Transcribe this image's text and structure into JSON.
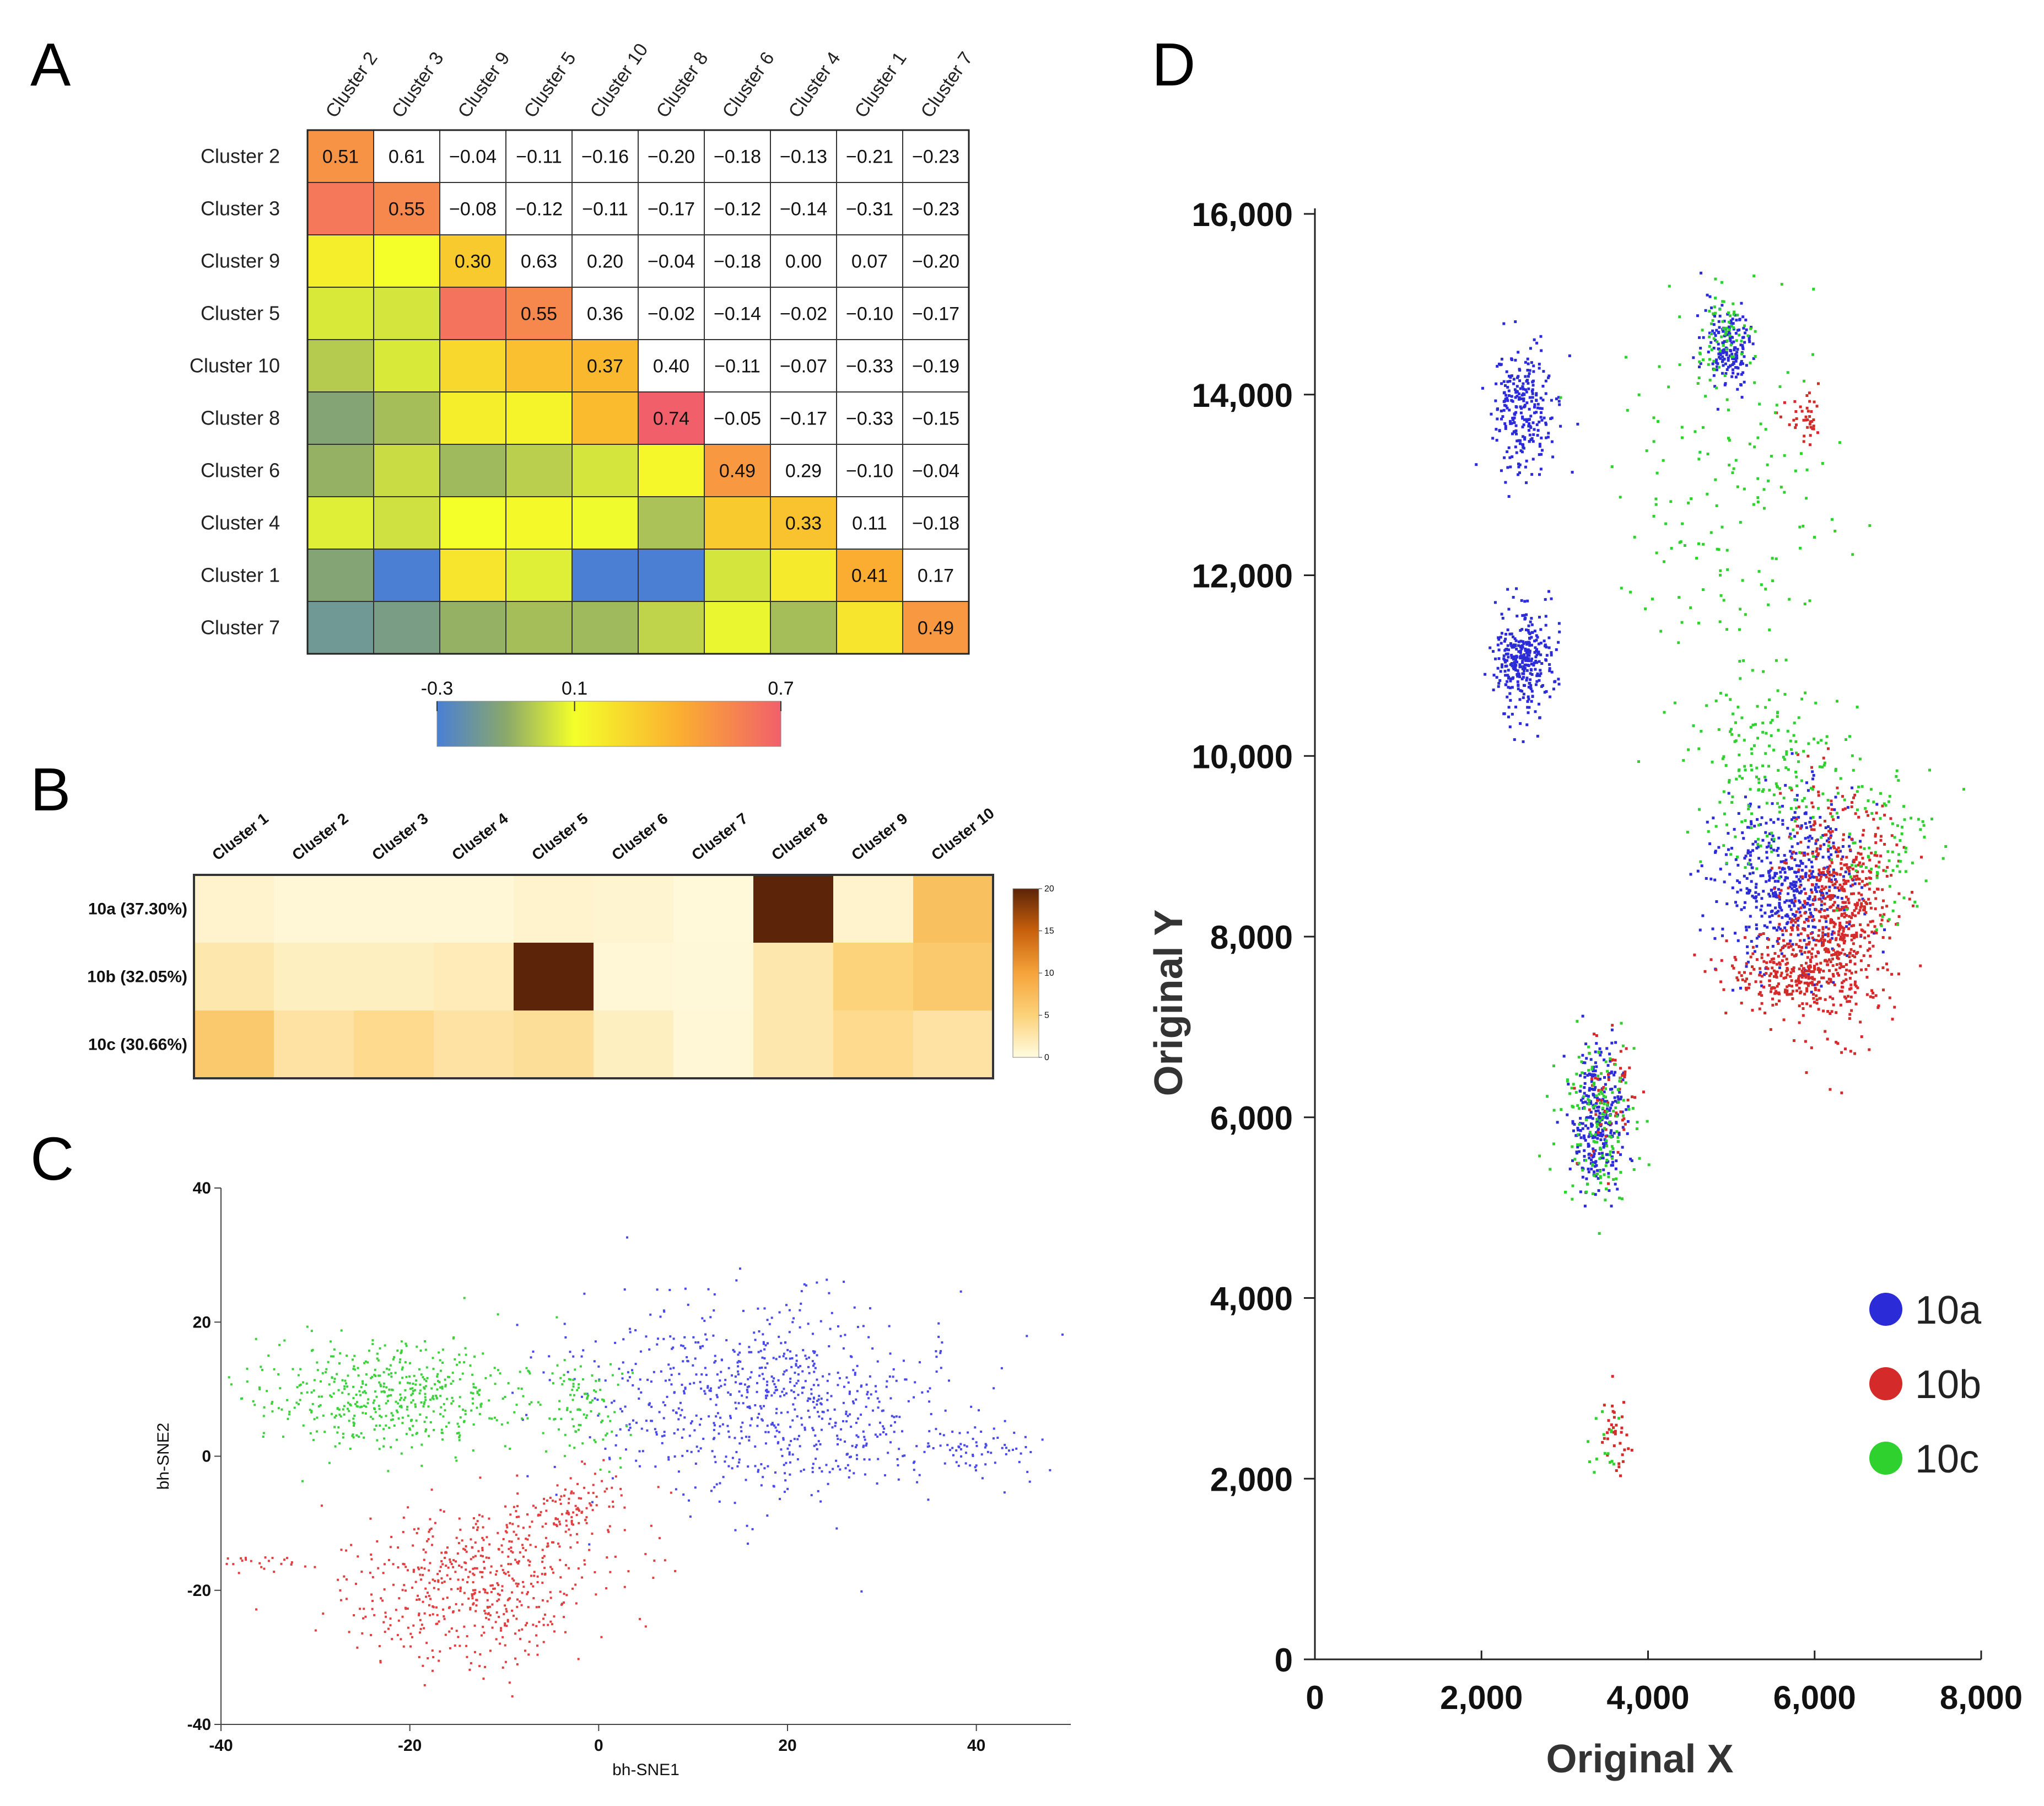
{
  "colors": {
    "blue": "#2b2bd8",
    "red": "#d42a2a",
    "green": "#2fd12f",
    "c_blue": "#4a4ae8",
    "c_red": "#e24040",
    "c_green": "#3dd13d"
  },
  "panel_labels": [
    "A",
    "B",
    "C",
    "D"
  ],
  "chart_data": [
    {
      "id": "A",
      "type": "heatmap",
      "title": "",
      "rows": [
        "Cluster 2",
        "Cluster 3",
        "Cluster 9",
        "Cluster 5",
        "Cluster 10",
        "Cluster 8",
        "Cluster 6",
        "Cluster 4",
        "Cluster 1",
        "Cluster 7"
      ],
      "columns": [
        "Cluster 2",
        "Cluster 3",
        "Cluster 9",
        "Cluster 5",
        "Cluster 10",
        "Cluster 8",
        "Cluster 6",
        "Cluster 4",
        "Cluster 1",
        "Cluster 7"
      ],
      "upper_text": [
        [
          "0.51",
          "0.61",
          "−0.04",
          "−0.11",
          "−0.16",
          "−0.20",
          "−0.18",
          "−0.13",
          "−0.21",
          "−0.23"
        ],
        [
          "",
          "0.55",
          "−0.08",
          "−0.12",
          "−0.11",
          "−0.17",
          "−0.12",
          "−0.14",
          "−0.31",
          "−0.23"
        ],
        [
          "",
          "",
          "0.30",
          "0.63",
          "0.20",
          "−0.04",
          "−0.18",
          "0.00",
          "0.07",
          "−0.20"
        ],
        [
          "",
          "",
          "",
          "0.55",
          "0.36",
          "−0.02",
          "−0.14",
          "−0.02",
          "−0.10",
          "−0.17"
        ],
        [
          "",
          "",
          "",
          "",
          "0.37",
          "0.40",
          "−0.11",
          "−0.07",
          "−0.33",
          "−0.19"
        ],
        [
          "",
          "",
          "",
          "",
          "",
          "0.74",
          "−0.05",
          "−0.17",
          "−0.33",
          "−0.15"
        ],
        [
          "",
          "",
          "",
          "",
          "",
          "",
          "0.49",
          "0.29",
          "−0.10",
          "−0.04"
        ],
        [
          "",
          "",
          "",
          "",
          "",
          "",
          "",
          "0.33",
          "0.11",
          "−0.18"
        ],
        [
          "",
          "",
          "",
          "",
          "",
          "",
          "",
          "",
          "0.41",
          "0.17"
        ],
        [
          "",
          "",
          "",
          "",
          "",
          "",
          "",
          "",
          "",
          "0.49"
        ]
      ],
      "matrix_values": [
        [
          0.51,
          0.61,
          -0.04,
          -0.11,
          -0.16,
          -0.2,
          -0.18,
          -0.13,
          -0.21,
          -0.23
        ],
        [
          0.61,
          0.55,
          -0.08,
          -0.12,
          -0.11,
          -0.17,
          -0.12,
          -0.14,
          -0.31,
          -0.23
        ],
        [
          0.16,
          0.1,
          0.3,
          0.63,
          0.2,
          -0.04,
          -0.18,
          0.0,
          0.07,
          -0.2
        ],
        [
          0.05,
          0.04,
          0.63,
          0.55,
          0.36,
          -0.02,
          -0.14,
          -0.02,
          -0.1,
          -0.17
        ],
        [
          -0.02,
          0.05,
          0.25,
          0.34,
          0.37,
          0.4,
          -0.11,
          -0.07,
          -0.33,
          -0.19
        ],
        [
          -0.12,
          -0.05,
          0.16,
          0.14,
          0.36,
          0.74,
          -0.05,
          -0.17,
          -0.33,
          -0.15
        ],
        [
          -0.08,
          0.02,
          -0.06,
          -0.01,
          0.04,
          0.13,
          0.49,
          0.29,
          -0.1,
          -0.04
        ],
        [
          0.06,
          0.03,
          0.1,
          0.12,
          0.09,
          -0.04,
          0.3,
          0.33,
          0.11,
          -0.18
        ],
        [
          -0.12,
          -0.31,
          0.2,
          0.06,
          -0.33,
          -0.33,
          0.04,
          0.18,
          0.41,
          0.17
        ],
        [
          -0.18,
          -0.15,
          -0.08,
          -0.05,
          -0.06,
          0.0,
          0.08,
          -0.05,
          0.2,
          0.49
        ]
      ],
      "colorbar": {
        "min": -0.3,
        "max": 0.7,
        "ticks": [
          "-0.3",
          "0.1",
          "0.7"
        ]
      }
    },
    {
      "id": "B",
      "type": "heatmap",
      "rows": [
        "10a (37.30%)",
        "10b (32.05%)",
        "10c (30.66%)"
      ],
      "columns": [
        "Cluster 1",
        "Cluster 2",
        "Cluster 3",
        "Cluster 4",
        "Cluster 5",
        "Cluster 6",
        "Cluster 7",
        "Cluster 8",
        "Cluster 9",
        "Cluster 10"
      ],
      "values": [
        [
          1.0,
          0.5,
          0.5,
          0.5,
          1.0,
          0.8,
          0.3,
          20,
          1.0,
          7
        ],
        [
          2.5,
          1.5,
          1.5,
          2.0,
          20,
          0.5,
          0.4,
          2.5,
          5,
          6
        ],
        [
          6,
          3,
          4,
          3,
          3.5,
          1.5,
          0.5,
          2.5,
          4,
          3
        ]
      ],
      "colorbar": {
        "min": 0,
        "max": 20,
        "ticks": [
          "0",
          "5",
          "10",
          "15",
          "20"
        ]
      }
    },
    {
      "id": "C",
      "type": "scatter",
      "xlabel": "bh-SNE1",
      "ylabel": "bh-SNE2",
      "xlim": [
        -40,
        50
      ],
      "ylim": [
        -40,
        40
      ],
      "xticks": [
        "-40",
        "-20",
        "0",
        "20",
        "40"
      ],
      "yticks": [
        "-40",
        "-20",
        "0",
        "20",
        "40"
      ],
      "series": [
        {
          "name": "10a",
          "clusters": [
            {
              "cx": 18,
              "cy": 8,
              "sx": 13,
              "sy": 9,
              "n": 780,
              "rot": -0.15
            },
            {
              "cx": 40,
              "cy": 1,
              "sx": 4,
              "sy": 2,
              "n": 60,
              "rot": 0
            }
          ]
        },
        {
          "name": "10b",
          "clusters": [
            {
              "cx": -13,
              "cy": -19,
              "sx": 9,
              "sy": 7,
              "n": 560,
              "rot": 0.45
            },
            {
              "cx": -3,
              "cy": -8,
              "sx": 5,
              "sy": 3,
              "n": 90,
              "rot": 0.3
            },
            {
              "cx": -36,
              "cy": -16,
              "sx": 2.5,
              "sy": 1,
              "n": 25,
              "rot": 0
            }
          ]
        },
        {
          "name": "10c",
          "clusters": [
            {
              "cx": -22,
              "cy": 9,
              "sx": 9,
              "sy": 5,
              "n": 500,
              "rot": -0.1
            },
            {
              "cx": -2,
              "cy": 8,
              "sx": 3,
              "sy": 5,
              "n": 90,
              "rot": 0
            }
          ]
        }
      ]
    },
    {
      "id": "D",
      "type": "scatter",
      "xlabel": "Original X",
      "ylabel": "Original Y",
      "xlim": [
        0,
        8000
      ],
      "ylim": [
        0,
        16000
      ],
      "xticks": [
        "0",
        "2,000",
        "4,000",
        "6,000",
        "8,000"
      ],
      "yticks": [
        "0",
        "2,000",
        "4,000",
        "6,000",
        "8,000",
        "10,000",
        "12,000",
        "14,000",
        "16,000"
      ],
      "legend": [
        "10a",
        "10b",
        "10c"
      ],
      "legend_position": "bottom-right",
      "series": [
        {
          "name": "10a",
          "clusters": [
            {
              "cx": 2500,
              "cy": 13800,
              "sx": 250,
              "sy": 450,
              "n": 260,
              "rot": 0
            },
            {
              "cx": 2500,
              "cy": 11050,
              "sx": 230,
              "sy": 400,
              "n": 320,
              "rot": 0
            },
            {
              "cx": 4950,
              "cy": 14550,
              "sx": 180,
              "sy": 300,
              "n": 180,
              "rot": 0
            },
            {
              "cx": 5700,
              "cy": 8600,
              "sx": 600,
              "sy": 600,
              "n": 520,
              "rot": 0
            },
            {
              "cx": 3400,
              "cy": 6000,
              "sx": 200,
              "sy": 550,
              "n": 300,
              "rot": 0
            }
          ]
        },
        {
          "name": "10b",
          "clusters": [
            {
              "cx": 6300,
              "cy": 8300,
              "sx": 450,
              "sy": 800,
              "n": 560,
              "rot": 0
            },
            {
              "cx": 5800,
              "cy": 7600,
              "sx": 550,
              "sy": 300,
              "n": 300,
              "rot": 0
            },
            {
              "cx": 3600,
              "cy": 2500,
              "sx": 120,
              "sy": 300,
              "n": 35,
              "rot": 0
            },
            {
              "cx": 5900,
              "cy": 13700,
              "sx": 160,
              "sy": 170,
              "n": 40,
              "rot": 0
            },
            {
              "cx": 3550,
              "cy": 6200,
              "sx": 250,
              "sy": 550,
              "n": 60,
              "rot": 0
            }
          ]
        },
        {
          "name": "10c",
          "clusters": [
            {
              "cx": 5500,
              "cy": 9800,
              "sx": 700,
              "sy": 700,
              "n": 200,
              "rot": 0
            },
            {
              "cx": 5000,
              "cy": 12800,
              "sx": 900,
              "sy": 1300,
              "n": 150,
              "rot": 0
            },
            {
              "cx": 4900,
              "cy": 14700,
              "sx": 250,
              "sy": 300,
              "n": 60,
              "rot": 0
            },
            {
              "cx": 3400,
              "cy": 6000,
              "sx": 300,
              "sy": 600,
              "n": 150,
              "rot": 0
            },
            {
              "cx": 6800,
              "cy": 9000,
              "sx": 400,
              "sy": 700,
              "n": 80,
              "rot": 0
            },
            {
              "cx": 3400,
              "cy": 2400,
              "sx": 200,
              "sy": 400,
              "n": 15,
              "rot": 0
            }
          ]
        }
      ]
    }
  ]
}
